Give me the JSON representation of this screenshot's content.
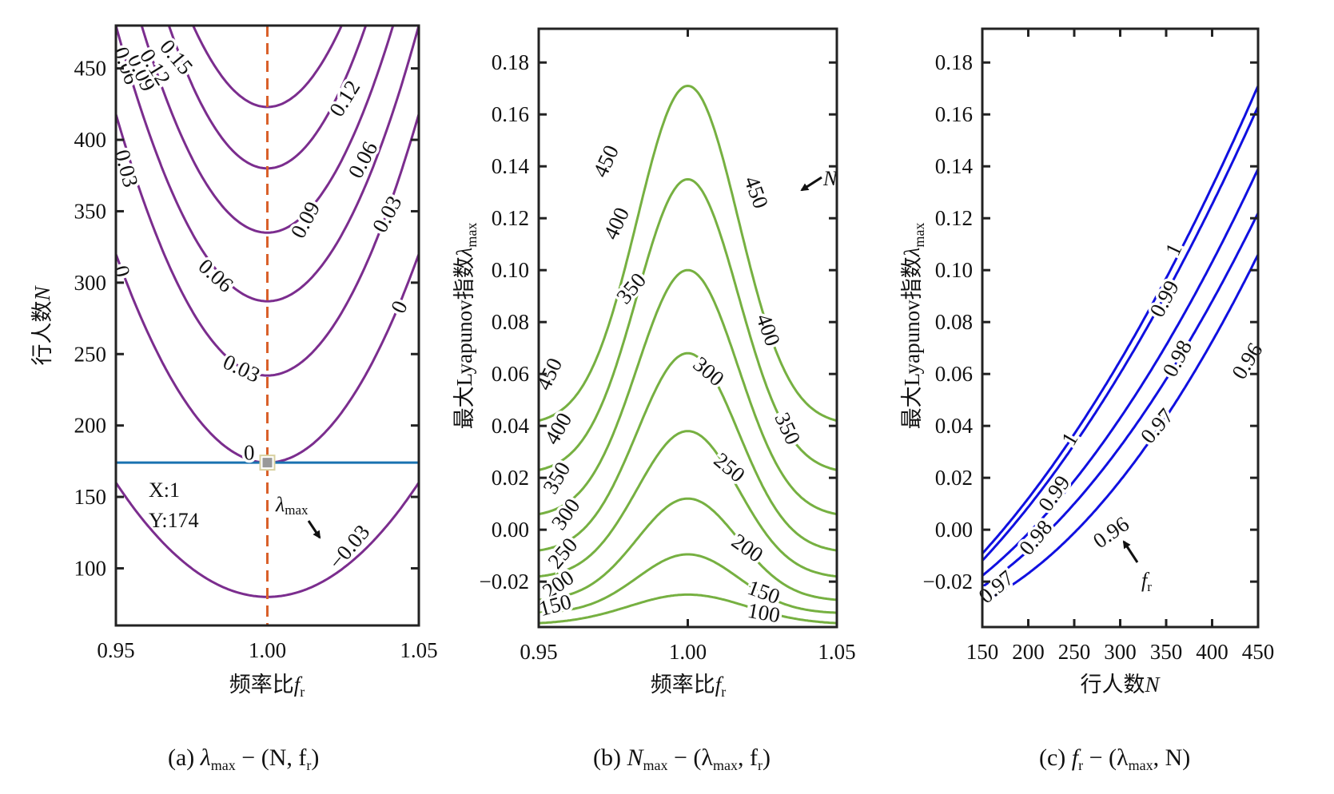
{
  "chart_data": [
    {
      "id": "a",
      "type": "contour",
      "caption": {
        "prefix": "(a) ",
        "main": "λ",
        "sub": "max",
        "rest": " − (N, f",
        "sub2": "r",
        "end": ")"
      },
      "xlabel": {
        "text": "频率比",
        "var": "f",
        "sub": "r"
      },
      "ylabel": {
        "text": "行人数",
        "var": "N"
      },
      "xlim": [
        0.95,
        1.05
      ],
      "ylim": [
        60,
        480
      ],
      "xticks": [
        0.95,
        1.0,
        1.05
      ],
      "xtick_labels": [
        "0.95",
        "1.00",
        "1.05"
      ],
      "yticks": [
        100,
        150,
        200,
        250,
        300,
        350,
        400,
        450
      ],
      "ytick_labels": [
        "100",
        "150",
        "200",
        "250",
        "300",
        "350",
        "400",
        "450"
      ],
      "line_color": "#7b2d8e",
      "levels": [
        {
          "level": -0.03,
          "label": "−0.03",
          "Nmin": 80,
          "k": 32000
        },
        {
          "level": 0,
          "label": "0",
          "Nmin": 174,
          "k": 58400
        },
        {
          "level": 0.03,
          "label": "0.03",
          "Nmin": 235,
          "k": 73200
        },
        {
          "level": 0.06,
          "label": "0.06",
          "Nmin": 287,
          "k": 77200
        },
        {
          "level": 0.09,
          "label": "0.09",
          "Nmin": 335,
          "k": 84200
        },
        {
          "level": 0.12,
          "label": "0.12",
          "Nmin": 380,
          "k": 94700
        },
        {
          "level": 0.15,
          "label": "0.15",
          "Nmin": 423,
          "k": 95000
        }
      ],
      "contour_labels": [
        {
          "text": "0.06",
          "x": 0.9535,
          "y": 452,
          "angle": 70
        },
        {
          "text": "0.09",
          "x": 0.9585,
          "y": 447,
          "angle": 65
        },
        {
          "text": "0.12",
          "x": 0.963,
          "y": 451,
          "angle": 58
        },
        {
          "text": "0.15",
          "x": 0.97,
          "y": 458,
          "angle": 50
        },
        {
          "text": "0.12",
          "x": 1.0255,
          "y": 429,
          "angle": -58
        },
        {
          "text": "0.03",
          "x": 0.9535,
          "y": 380,
          "angle": 75
        },
        {
          "text": "0.09",
          "x": 1.0125,
          "y": 344,
          "angle": -62
        },
        {
          "text": "0.06",
          "x": 1.0315,
          "y": 386,
          "angle": -62
        },
        {
          "text": "0.03",
          "x": 1.0395,
          "y": 348,
          "angle": -62
        },
        {
          "text": "0.06",
          "x": 0.983,
          "y": 305,
          "angle": 42
        },
        {
          "text": "0",
          "x": 0.952,
          "y": 308,
          "angle": 75
        },
        {
          "text": "0",
          "x": 1.0435,
          "y": 283,
          "angle": -65
        },
        {
          "text": "0.03",
          "x": 0.9915,
          "y": 240,
          "angle": 25
        },
        {
          "text": "0",
          "x": 0.994,
          "y": 181,
          "angle": 0
        },
        {
          "text": "−0.03",
          "x": 1.027,
          "y": 115,
          "angle": -50
        }
      ],
      "reference_lines": {
        "vertical": {
          "x": 1.0,
          "color": "#d9602a",
          "style": "dashed"
        },
        "horizontal": {
          "y": 174,
          "color": "#1a72b0",
          "style": "solid"
        }
      },
      "datatip": {
        "x_label": "X:1",
        "y_label": "Y:174",
        "x": 1,
        "y": 174
      },
      "annotation": {
        "text": "λ",
        "sub": "max",
        "arrow": true
      }
    },
    {
      "id": "b",
      "type": "contour",
      "caption": {
        "prefix": "(b)  ",
        "main": "N",
        "sub": "max",
        "rest": " − (λ",
        "sub2": "max",
        "rest2": ", f",
        "sub3": "r",
        "end": ")"
      },
      "xlabel": {
        "text": "频率比",
        "var": "f",
        "sub": "r"
      },
      "ylabel": {
        "text": "最大Lyapunov指数",
        "var": "λ",
        "sub": "max"
      },
      "xlim": [
        0.95,
        1.05
      ],
      "ylim": [
        -0.0375,
        0.193
      ],
      "xticks": [
        0.95,
        1.0,
        1.05
      ],
      "xtick_labels": [
        "0.95",
        "1.00",
        "1.05"
      ],
      "yticks": [
        -0.02,
        0.0,
        0.02,
        0.04,
        0.06,
        0.08,
        0.1,
        0.12,
        0.14,
        0.16,
        0.18
      ],
      "ytick_labels": [
        "−0.02",
        "0.00",
        "0.02",
        "0.04",
        "0.06",
        "0.08",
        "0.10",
        "0.12",
        "0.14",
        "0.16",
        "0.18"
      ],
      "line_color": "#76b041",
      "levels": [
        {
          "level": 100,
          "label": "100",
          "peak": -0.025,
          "edge": -0.036,
          "width": 0.028
        },
        {
          "level": 150,
          "label": "150",
          "peak": -0.0095,
          "edge": -0.032,
          "width": 0.024
        },
        {
          "level": 200,
          "label": "200",
          "peak": 0.012,
          "edge": -0.027,
          "width": 0.024
        },
        {
          "level": 250,
          "label": "250",
          "peak": 0.038,
          "edge": -0.018,
          "width": 0.024
        },
        {
          "level": 300,
          "label": "300",
          "peak": 0.068,
          "edge": -0.008,
          "width": 0.024
        },
        {
          "level": 350,
          "label": "350",
          "peak": 0.1,
          "edge": 0.006,
          "width": 0.024
        },
        {
          "level": 400,
          "label": "400",
          "peak": 0.135,
          "edge": 0.023,
          "width": 0.024
        },
        {
          "level": 450,
          "label": "450",
          "peak": 0.171,
          "edge": 0.042,
          "width": 0.024
        }
      ],
      "contour_labels": [
        {
          "text": "450",
          "x": 0.9725,
          "y": 0.142,
          "angle": -65
        },
        {
          "text": "400",
          "x": 0.976,
          "y": 0.118,
          "angle": -65
        },
        {
          "text": "350",
          "x": 0.981,
          "y": 0.093,
          "angle": -50
        },
        {
          "text": "450",
          "x": 1.023,
          "y": 0.13,
          "angle": 70
        },
        {
          "text": "400",
          "x": 1.027,
          "y": 0.077,
          "angle": 70
        },
        {
          "text": "300",
          "x": 1.007,
          "y": 0.061,
          "angle": 40
        },
        {
          "text": "350",
          "x": 1.0335,
          "y": 0.039,
          "angle": 65
        },
        {
          "text": "250",
          "x": 1.014,
          "y": 0.024,
          "angle": 40
        },
        {
          "text": "200",
          "x": 1.02,
          "y": -0.007,
          "angle": 35
        },
        {
          "text": "150",
          "x": 1.0255,
          "y": -0.024,
          "angle": 20
        },
        {
          "text": "100",
          "x": 1.0255,
          "y": -0.032,
          "angle": 10
        },
        {
          "text": "450",
          "x": 0.9535,
          "y": 0.06,
          "angle": -65
        },
        {
          "text": "400",
          "x": 0.9565,
          "y": 0.039,
          "angle": -60
        },
        {
          "text": "350",
          "x": 0.956,
          "y": 0.02,
          "angle": -60
        },
        {
          "text": "300",
          "x": 0.959,
          "y": 0.006,
          "angle": -55
        },
        {
          "text": "250",
          "x": 0.958,
          "y": -0.009,
          "angle": -50
        },
        {
          "text": "200",
          "x": 0.9565,
          "y": -0.021,
          "angle": -35
        },
        {
          "text": "150",
          "x": 0.9555,
          "y": -0.029,
          "angle": -15
        }
      ],
      "annotation": {
        "text": "N",
        "arrow": true
      }
    },
    {
      "id": "c",
      "type": "contour",
      "caption": {
        "prefix": "(c)  ",
        "main": "f",
        "sub": "r",
        "rest": " − (λ",
        "sub2": "max",
        "rest2": ", N",
        "end": ")"
      },
      "xlabel": {
        "text": "行人数",
        "var": "N"
      },
      "ylabel": {
        "text": "最大Lyapunov指数",
        "var": "λ",
        "sub": "max"
      },
      "xlim": [
        150,
        450
      ],
      "ylim": [
        -0.0375,
        0.193
      ],
      "xticks": [
        150,
        200,
        250,
        300,
        350,
        400,
        450
      ],
      "xtick_labels": [
        "150",
        "200",
        "250",
        "300",
        "350",
        "400",
        "450"
      ],
      "yticks": [
        -0.02,
        0.0,
        0.02,
        0.04,
        0.06,
        0.08,
        0.1,
        0.12,
        0.14,
        0.16,
        0.18
      ],
      "ytick_labels": [
        "−0.02",
        "0.00",
        "0.02",
        "0.04",
        "0.06",
        "0.08",
        "0.10",
        "0.12",
        "0.14",
        "0.16",
        "0.18"
      ],
      "line_color": "#1010e0",
      "levels": [
        {
          "level": 1,
          "label": "1",
          "start": -0.0092,
          "end": 0.171,
          "curv": 0.35
        },
        {
          "level": 0.99,
          "label": "0.99",
          "start": -0.0119,
          "end": 0.163,
          "curv": 0.35
        },
        {
          "level": 0.98,
          "label": "0.98",
          "start": -0.0177,
          "end": 0.139,
          "curv": 0.45
        },
        {
          "level": 0.97,
          "label": "0.97",
          "start": -0.022,
          "end": 0.122,
          "curv": 0.5
        },
        {
          "level": 0.96,
          "label": "0.96",
          "start": -0.028,
          "end": 0.106,
          "curv": 0.6
        }
      ],
      "contour_labels": [
        {
          "text": "1",
          "x": 358,
          "y": 0.108,
          "angle": -65
        },
        {
          "text": "0.99",
          "x": 348,
          "y": 0.089,
          "angle": -62
        },
        {
          "text": "0.98",
          "x": 362,
          "y": 0.066,
          "angle": -62
        },
        {
          "text": "0.96",
          "x": 438,
          "y": 0.065,
          "angle": -58
        },
        {
          "text": "1",
          "x": 245,
          "y": 0.035,
          "angle": -60
        },
        {
          "text": "0.99",
          "x": 228,
          "y": 0.014,
          "angle": -55
        },
        {
          "text": "0.97",
          "x": 340,
          "y": 0.04,
          "angle": -50
        },
        {
          "text": "0.98",
          "x": 208,
          "y": -0.003,
          "angle": -50
        },
        {
          "text": "0.96",
          "x": 290,
          "y": -0.001,
          "angle": -35
        },
        {
          "text": "0.97",
          "x": 165,
          "y": -0.022,
          "angle": -40
        }
      ],
      "annotation": {
        "text": "f",
        "sub": "r",
        "arrow": true
      }
    }
  ]
}
